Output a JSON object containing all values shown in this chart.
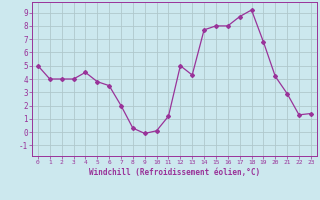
{
  "hours": [
    0,
    1,
    2,
    3,
    4,
    5,
    6,
    7,
    8,
    9,
    10,
    11,
    12,
    13,
    14,
    15,
    16,
    17,
    18,
    19,
    20,
    21,
    22,
    23
  ],
  "values": [
    5.0,
    4.0,
    4.0,
    4.0,
    4.5,
    3.8,
    3.5,
    2.0,
    0.3,
    -0.1,
    0.1,
    1.2,
    5.0,
    4.3,
    7.7,
    8.0,
    8.0,
    8.7,
    9.2,
    6.8,
    4.2,
    2.9,
    1.3,
    1.4
  ],
  "line_color": "#993399",
  "marker": "D",
  "marker_size": 2.0,
  "linewidth": 0.9,
  "bg_color": "#cce8ee",
  "grid_color": "#b0c8cc",
  "xlabel": "Windchill (Refroidissement éolien,°C)",
  "xlabel_color": "#993399",
  "tick_color": "#993399",
  "ylim": [
    -1.8,
    9.8
  ],
  "yticks": [
    -1,
    0,
    1,
    2,
    3,
    4,
    5,
    6,
    7,
    8,
    9
  ],
  "xticks": [
    0,
    1,
    2,
    3,
    4,
    5,
    6,
    7,
    8,
    9,
    10,
    11,
    12,
    13,
    14,
    15,
    16,
    17,
    18,
    19,
    20,
    21,
    22,
    23
  ],
  "spine_color": "#993399"
}
